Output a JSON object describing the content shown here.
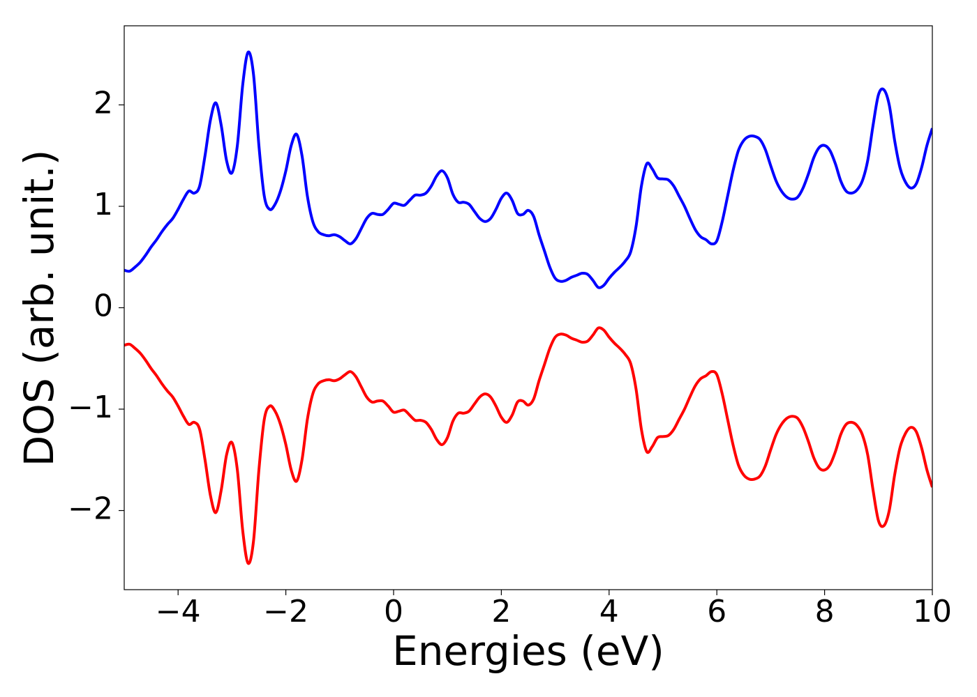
{
  "chart_data": {
    "type": "line",
    "xlabel": "Energies (eV)",
    "ylabel": "DOS (arb. unit.)",
    "xlim": [
      -5,
      10
    ],
    "ylim": [
      -2.78,
      2.78
    ],
    "xticks": [
      {
        "value": -4,
        "label": "−4"
      },
      {
        "value": -2,
        "label": "−2"
      },
      0,
      2,
      4,
      6,
      8,
      10
    ],
    "yticks": [
      {
        "value": -2,
        "label": "−2"
      },
      {
        "value": -1,
        "label": "−1"
      },
      0,
      1,
      2
    ],
    "grid": false,
    "x": [
      -5,
      -4.9,
      -4.8,
      -4.7,
      -4.6,
      -4.5,
      -4.4,
      -4.3,
      -4.2,
      -4.1,
      -4,
      -3.9,
      -3.8,
      -3.7,
      -3.6,
      -3.5,
      -3.4,
      -3.3,
      -3.2,
      -3.1,
      -3,
      -2.9,
      -2.8,
      -2.7,
      -2.6,
      -2.5,
      -2.4,
      -2.3,
      -2.2,
      -2.1,
      -2,
      -1.9,
      -1.8,
      -1.7,
      -1.6,
      -1.5,
      -1.4,
      -1.3,
      -1.2,
      -1.1,
      -1,
      -0.9,
      -0.8,
      -0.7,
      -0.6,
      -0.5,
      -0.4,
      -0.3,
      -0.2,
      -0.1,
      0,
      0.1,
      0.2,
      0.3,
      0.4,
      0.5,
      0.6,
      0.7,
      0.8,
      0.9,
      1,
      1.1,
      1.2,
      1.3,
      1.4,
      1.5,
      1.6,
      1.7,
      1.8,
      1.9,
      2,
      2.1,
      2.2,
      2.3,
      2.4,
      2.5,
      2.6,
      2.7,
      2.8,
      2.9,
      3,
      3.1,
      3.2,
      3.3,
      3.4,
      3.5,
      3.6,
      3.7,
      3.8,
      3.9,
      4,
      4.1,
      4.2,
      4.3,
      4.4,
      4.5,
      4.6,
      4.7,
      4.8,
      4.9,
      5,
      5.1,
      5.2,
      5.3,
      5.4,
      5.5,
      5.6,
      5.7,
      5.8,
      5.9,
      6,
      6.1,
      6.2,
      6.3,
      6.4,
      6.5,
      6.6,
      6.7,
      6.8,
      6.9,
      7,
      7.1,
      7.2,
      7.3,
      7.4,
      7.5,
      7.6,
      7.7,
      7.8,
      7.9,
      8,
      8.1,
      8.2,
      8.3,
      8.4,
      8.5,
      8.6,
      8.7,
      8.8,
      8.9,
      9,
      9.1,
      9.2,
      9.3,
      9.4,
      9.5,
      9.6,
      9.7,
      9.8,
      9.9,
      10
    ],
    "series": [
      {
        "color": "#0000ff",
        "values": [
          0.37,
          0.36,
          0.4,
          0.45,
          0.52,
          0.6,
          0.67,
          0.75,
          0.82,
          0.88,
          0.97,
          1.07,
          1.15,
          1.13,
          1.2,
          1.5,
          1.85,
          2.02,
          1.8,
          1.45,
          1.33,
          1.6,
          2.2,
          2.52,
          2.3,
          1.6,
          1.1,
          0.97,
          1.02,
          1.15,
          1.35,
          1.6,
          1.71,
          1.5,
          1.1,
          0.85,
          0.75,
          0.72,
          0.71,
          0.72,
          0.7,
          0.66,
          0.63,
          0.68,
          0.78,
          0.88,
          0.93,
          0.92,
          0.92,
          0.97,
          1.03,
          1.02,
          1.01,
          1.06,
          1.11,
          1.11,
          1.13,
          1.2,
          1.3,
          1.35,
          1.28,
          1.12,
          1.04,
          1.04,
          1.02,
          0.95,
          0.88,
          0.85,
          0.88,
          0.97,
          1.08,
          1.13,
          1.06,
          0.93,
          0.92,
          0.96,
          0.9,
          0.72,
          0.56,
          0.4,
          0.29,
          0.26,
          0.27,
          0.3,
          0.32,
          0.34,
          0.33,
          0.27,
          0.2,
          0.22,
          0.29,
          0.35,
          0.4,
          0.46,
          0.55,
          0.8,
          1.2,
          1.42,
          1.37,
          1.28,
          1.27,
          1.26,
          1.2,
          1.1,
          1.0,
          0.88,
          0.77,
          0.7,
          0.67,
          0.63,
          0.66,
          0.85,
          1.1,
          1.35,
          1.55,
          1.65,
          1.69,
          1.69,
          1.66,
          1.56,
          1.4,
          1.25,
          1.15,
          1.09,
          1.07,
          1.09,
          1.18,
          1.32,
          1.48,
          1.58,
          1.6,
          1.55,
          1.42,
          1.25,
          1.15,
          1.13,
          1.16,
          1.25,
          1.45,
          1.8,
          2.1,
          2.15,
          2.0,
          1.65,
          1.38,
          1.24,
          1.18,
          1.22,
          1.38,
          1.6,
          1.77
        ]
      },
      {
        "color": "#ff0000",
        "values": [
          -0.37,
          -0.36,
          -0.4,
          -0.45,
          -0.52,
          -0.6,
          -0.67,
          -0.75,
          -0.82,
          -0.88,
          -0.97,
          -1.07,
          -1.15,
          -1.13,
          -1.2,
          -1.5,
          -1.85,
          -2.02,
          -1.8,
          -1.45,
          -1.33,
          -1.6,
          -2.2,
          -2.52,
          -2.3,
          -1.6,
          -1.1,
          -0.97,
          -1.02,
          -1.15,
          -1.35,
          -1.6,
          -1.71,
          -1.5,
          -1.1,
          -0.85,
          -0.75,
          -0.72,
          -0.71,
          -0.72,
          -0.7,
          -0.66,
          -0.63,
          -0.68,
          -0.78,
          -0.88,
          -0.93,
          -0.92,
          -0.92,
          -0.97,
          -1.03,
          -1.02,
          -1.01,
          -1.06,
          -1.11,
          -1.11,
          -1.13,
          -1.2,
          -1.3,
          -1.35,
          -1.28,
          -1.12,
          -1.04,
          -1.04,
          -1.02,
          -0.95,
          -0.88,
          -0.85,
          -0.88,
          -0.97,
          -1.08,
          -1.13,
          -1.06,
          -0.93,
          -0.92,
          -0.96,
          -0.9,
          -0.72,
          -0.56,
          -0.4,
          -0.29,
          -0.26,
          -0.27,
          -0.3,
          -0.32,
          -0.34,
          -0.33,
          -0.27,
          -0.2,
          -0.22,
          -0.29,
          -0.35,
          -0.4,
          -0.46,
          -0.55,
          -0.8,
          -1.2,
          -1.42,
          -1.37,
          -1.28,
          -1.27,
          -1.26,
          -1.2,
          -1.1,
          -1.0,
          -0.88,
          -0.77,
          -0.7,
          -0.67,
          -0.63,
          -0.66,
          -0.85,
          -1.1,
          -1.35,
          -1.55,
          -1.65,
          -1.69,
          -1.69,
          -1.66,
          -1.56,
          -1.4,
          -1.25,
          -1.15,
          -1.09,
          -1.07,
          -1.09,
          -1.18,
          -1.32,
          -1.48,
          -1.58,
          -1.6,
          -1.55,
          -1.42,
          -1.25,
          -1.15,
          -1.13,
          -1.16,
          -1.25,
          -1.45,
          -1.8,
          -2.1,
          -2.15,
          -2.0,
          -1.65,
          -1.38,
          -1.24,
          -1.18,
          -1.22,
          -1.38,
          -1.6,
          -1.77
        ]
      }
    ]
  }
}
